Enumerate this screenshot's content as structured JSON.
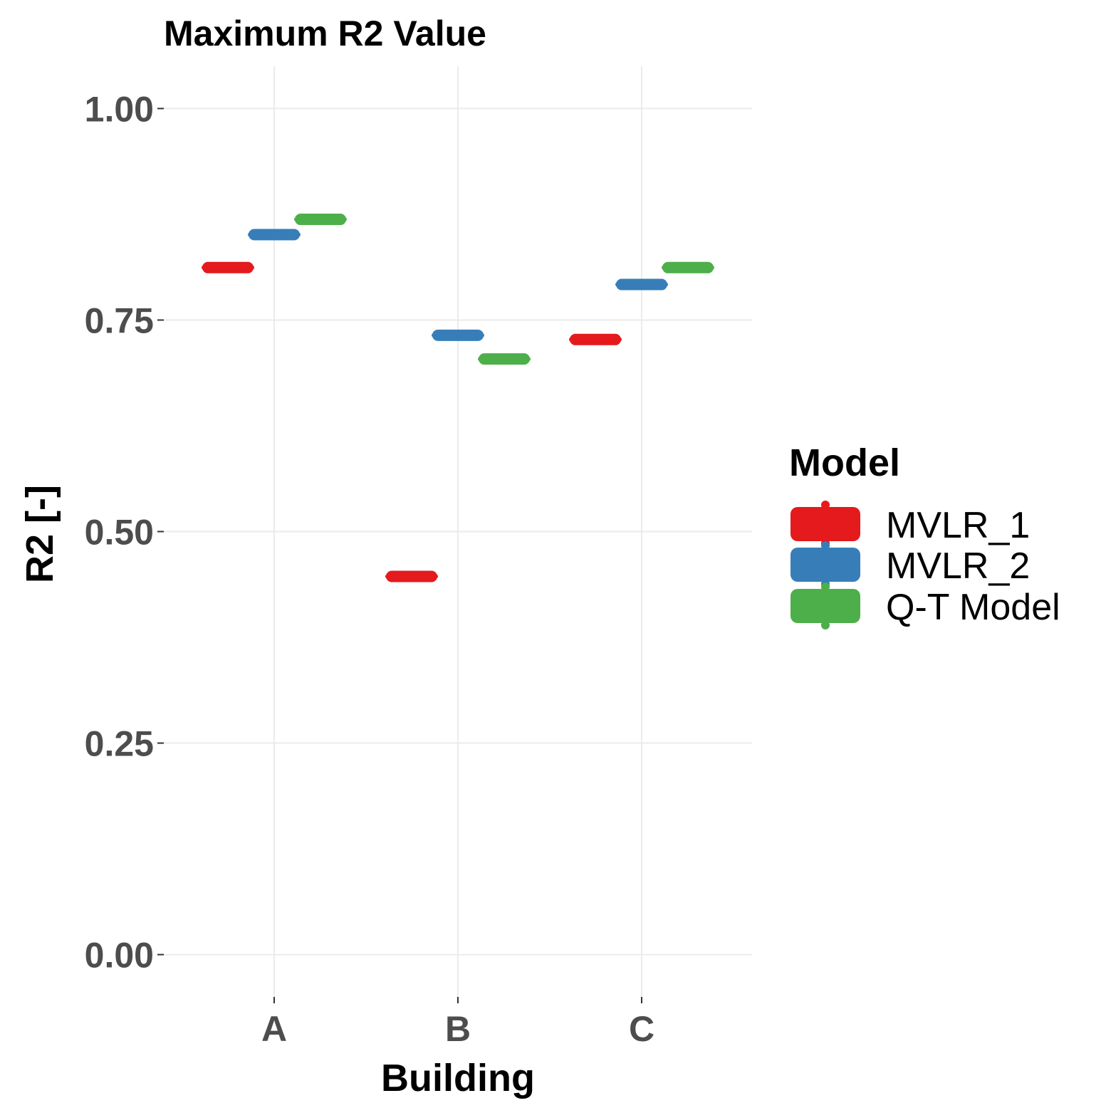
{
  "chart_data": {
    "type": "scatter",
    "title": "Maximum R2 Value",
    "xlabel": "Building",
    "ylabel": "R2 [-]",
    "categories": [
      "A",
      "B",
      "C"
    ],
    "ylim": [
      -0.05,
      1.05
    ],
    "yticks": [
      0.0,
      0.25,
      0.5,
      0.75,
      1.0
    ],
    "ytick_labels": [
      "0.00",
      "0.25",
      "0.50",
      "0.75",
      "1.00"
    ],
    "grid": true,
    "legend": {
      "title": "Model",
      "placement": "right"
    },
    "series": [
      {
        "name": "MVLR_1",
        "color": "#E41A1C",
        "values": [
          0.812,
          0.447,
          0.727
        ]
      },
      {
        "name": "MVLR_2",
        "color": "#377EB8",
        "values": [
          0.851,
          0.732,
          0.792
        ]
      },
      {
        "name": "Q-T Model",
        "color": "#4DAF4A",
        "values": [
          0.869,
          0.704,
          0.812
        ]
      }
    ]
  }
}
